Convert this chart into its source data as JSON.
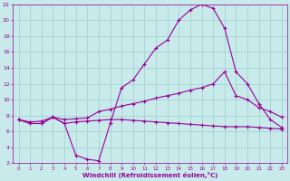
{
  "xlabel": "Windchill (Refroidissement éolien,°C)",
  "background_color": "#c8eaea",
  "grid_color": "#9ecece",
  "line_color": "#990099",
  "xlim": [
    -0.5,
    23.5
  ],
  "ylim": [
    2,
    22
  ],
  "xticks": [
    0,
    1,
    2,
    3,
    4,
    5,
    6,
    7,
    8,
    9,
    10,
    11,
    12,
    13,
    14,
    15,
    16,
    17,
    18,
    19,
    20,
    21,
    22,
    23
  ],
  "yticks": [
    2,
    4,
    6,
    8,
    10,
    12,
    14,
    16,
    18,
    20,
    22
  ],
  "curve1_x": [
    0,
    1,
    2,
    3,
    4,
    5,
    6,
    7,
    8,
    9,
    10,
    11,
    12,
    13,
    14,
    15,
    16,
    17,
    18,
    19,
    20,
    21,
    22,
    23
  ],
  "curve1_y": [
    7.5,
    7.0,
    7.0,
    7.8,
    7.0,
    3.0,
    2.5,
    2.3,
    7.0,
    11.5,
    12.5,
    14.5,
    16.5,
    17.5,
    20.0,
    21.3,
    22.0,
    21.5,
    19.0,
    13.5,
    12.0,
    9.5,
    7.5,
    6.5
  ],
  "curve2_x": [
    0,
    1,
    2,
    3,
    4,
    5,
    6,
    7,
    8,
    9,
    10,
    11,
    12,
    13,
    14,
    15,
    16,
    17,
    18,
    19,
    20,
    21,
    22,
    23
  ],
  "curve2_y": [
    7.5,
    7.2,
    7.3,
    7.8,
    7.5,
    7.6,
    7.7,
    8.5,
    8.8,
    9.2,
    9.5,
    9.8,
    10.2,
    10.5,
    10.8,
    11.2,
    11.5,
    12.0,
    13.5,
    10.5,
    10.0,
    9.0,
    8.5,
    7.8
  ],
  "curve3_x": [
    0,
    1,
    2,
    3,
    4,
    5,
    6,
    7,
    8,
    9,
    10,
    11,
    12,
    13,
    14,
    15,
    16,
    17,
    18,
    19,
    20,
    21,
    22,
    23
  ],
  "curve3_y": [
    7.5,
    7.0,
    7.0,
    7.8,
    7.0,
    7.2,
    7.3,
    7.4,
    7.5,
    7.5,
    7.4,
    7.3,
    7.2,
    7.1,
    7.0,
    6.9,
    6.8,
    6.7,
    6.6,
    6.6,
    6.6,
    6.5,
    6.4,
    6.3
  ],
  "marker": "+",
  "markersize": 3.5,
  "linewidth": 0.8
}
